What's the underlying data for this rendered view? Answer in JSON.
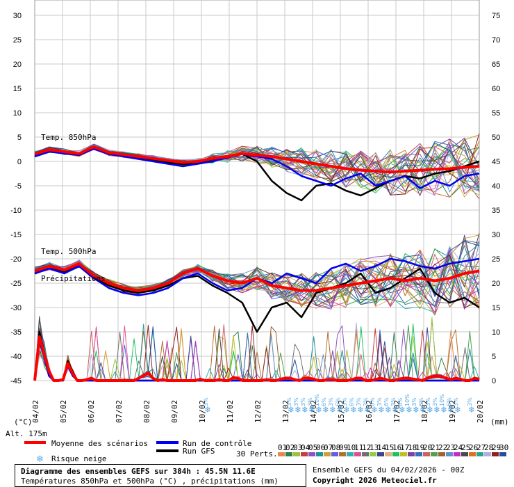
{
  "chart_data": {
    "type": "line",
    "left_axis": {
      "unit": "(°C)",
      "ticks": [
        30,
        25,
        20,
        15,
        10,
        5,
        0,
        -5,
        -10,
        -15,
        -20,
        -25,
        -30,
        -35,
        -40,
        -45
      ],
      "range": [
        -45,
        30
      ]
    },
    "right_axis": {
      "unit": "(mm)",
      "ticks": [
        75,
        70,
        65,
        60,
        55,
        50,
        45,
        40,
        35,
        30,
        25,
        20,
        15,
        10,
        5,
        0
      ],
      "range": [
        0,
        75
      ]
    },
    "x_labels": [
      "04/02",
      "05/02",
      "06/02",
      "07/02",
      "08/02",
      "09/02",
      "10/02",
      "11/02",
      "12/02",
      "13/02",
      "14/02",
      "15/02",
      "16/02",
      "17/02",
      "18/02",
      "19/02",
      "20/02"
    ],
    "panel_labels": {
      "t850": "Temp. 850hPa",
      "t500": "Temp. 500hPa",
      "precip": "Précipitations"
    },
    "altitude": "Alt. 175m",
    "legend": {
      "mean": "Moyenne des scénarios",
      "control": "Run de contrôle",
      "gfs": "Run GFS",
      "snow": "Risque neige",
      "perts": "30 Perts."
    },
    "member_labels": [
      "01",
      "02",
      "03",
      "04",
      "05",
      "06",
      "07",
      "08",
      "09",
      "10",
      "11",
      "12",
      "13",
      "14",
      "15",
      "16",
      "17",
      "18",
      "19",
      "20",
      "21",
      "22",
      "23",
      "24",
      "25",
      "26",
      "27",
      "28",
      "29",
      "30"
    ],
    "member_colors": [
      "#e8884b",
      "#2f7f4f",
      "#a0c040",
      "#c04040",
      "#9050c0",
      "#2090a0",
      "#d0a030",
      "#6060e0",
      "#b07030",
      "#30b0b0",
      "#e05090",
      "#707070",
      "#90d040",
      "#404090",
      "#e0b080",
      "#20c060",
      "#c0c020",
      "#8040a0",
      "#3070c0",
      "#d06060",
      "#50a050",
      "#a06030",
      "#6090d0",
      "#c030c0",
      "#4a4a4a",
      "#e07020",
      "#30a090",
      "#b0b0e0",
      "#902020",
      "#2050a0"
    ],
    "series_colors": {
      "mean": "#ff0000",
      "control": "#0000ee",
      "gfs": "#000000"
    },
    "t850": {
      "mean": [
        1.5,
        2.4,
        2.0,
        1.6,
        3.0,
        1.8,
        1.4,
        1.0,
        0.6,
        0.2,
        -0.2,
        0.0,
        0.6,
        1.0,
        1.6,
        1.3,
        1.0,
        0.5,
        0.0,
        -0.5,
        -1.0,
        -1.5,
        -1.8,
        -2.0,
        -2.2,
        -2.0,
        -1.8,
        -1.6,
        -1.5,
        -1.2,
        -1.0
      ],
      "control": [
        1.0,
        2.0,
        1.6,
        1.3,
        2.6,
        1.5,
        1.0,
        0.5,
        0.0,
        -0.5,
        -1.0,
        -0.5,
        0.0,
        0.8,
        1.5,
        1.0,
        0.5,
        -1.0,
        -3.0,
        -4.0,
        -5.0,
        -3.5,
        -2.5,
        -5.0,
        -4.0,
        -3.0,
        -5.5,
        -4.0,
        -5.0,
        -3.0,
        -2.5
      ],
      "gfs": [
        1.2,
        2.2,
        1.8,
        1.5,
        2.8,
        1.6,
        1.2,
        0.8,
        0.3,
        -0.2,
        -0.6,
        -0.3,
        0.4,
        1.0,
        1.5,
        0.0,
        -4.0,
        -6.5,
        -8.0,
        -5.0,
        -4.5,
        -6.0,
        -7.0,
        -5.5,
        -4.0,
        -3.0,
        -3.5,
        -2.5,
        -2.0,
        -1.0,
        0.0
      ]
    },
    "t500": {
      "mean": [
        -22.5,
        -21.5,
        -22.3,
        -21.0,
        -23.5,
        -25.0,
        -26.0,
        -26.5,
        -26.0,
        -25.0,
        -23.0,
        -22.0,
        -23.5,
        -24.5,
        -25.0,
        -24.0,
        -25.5,
        -26.0,
        -26.5,
        -26.5,
        -26.0,
        -25.5,
        -25.0,
        -24.5,
        -24.0,
        -24.5,
        -24.0,
        -24.5,
        -24.0,
        -23.0,
        -22.5
      ],
      "control": [
        -23.0,
        -22.0,
        -23.0,
        -21.5,
        -24.0,
        -26.0,
        -27.0,
        -27.5,
        -27.0,
        -26.0,
        -24.0,
        -23.0,
        -25.0,
        -26.5,
        -26.0,
        -24.0,
        -25.0,
        -23.0,
        -24.0,
        -25.0,
        -22.0,
        -21.0,
        -22.5,
        -21.5,
        -20.0,
        -20.5,
        -21.5,
        -22.0,
        -21.0,
        -20.5,
        -20.0
      ],
      "gfs": [
        -23.0,
        -21.8,
        -22.8,
        -21.3,
        -23.8,
        -25.5,
        -26.5,
        -27.0,
        -26.5,
        -25.5,
        -24.0,
        -23.5,
        -25.5,
        -27.0,
        -29.0,
        -35.0,
        -30.0,
        -29.0,
        -32.0,
        -27.0,
        -26.0,
        -25.0,
        -23.0,
        -27.0,
        -26.0,
        -24.0,
        -22.0,
        -27.0,
        -29.0,
        -28.0,
        -30.0
      ]
    },
    "precip": {
      "mean": [
        0.0,
        9.0,
        5.5,
        2.0,
        0.0,
        0.0,
        0.2,
        3.5,
        1.5,
        0.0,
        0.0,
        0.2,
        0.5,
        0.0,
        0.0,
        0.0,
        0.0,
        0.0,
        0.0,
        0.0,
        0.0,
        0.0,
        0.5,
        1.0,
        1.5,
        0.5,
        0.0,
        0.2,
        0.0,
        0.0,
        0.0,
        0.0,
        0.0,
        0.0,
        0.0,
        0.3,
        0.0,
        0.0,
        0.0,
        0.2,
        0.0,
        0.0,
        0.6,
        0.5,
        0.0,
        0.0,
        0.0,
        0.0,
        0.0,
        0.2,
        0.0,
        0.0,
        0.3,
        0.5,
        0.5,
        0.2,
        0.0,
        0.5,
        0.5,
        0.3,
        0.0,
        0.0,
        0.2,
        0.2,
        0.0,
        0.0,
        0.0,
        0.2,
        0.5,
        0.5,
        0.0,
        0.0,
        0.2,
        0.5,
        0.3,
        0.0,
        0.0,
        0.3,
        0.5,
        0.5,
        0.3,
        0.2,
        0.0,
        0.5,
        0.8,
        1.0,
        0.8,
        0.5,
        0.2,
        0.5,
        0.3,
        0.0,
        0.0,
        0.5,
        0.3
      ],
      "control": [
        0.0,
        8.0,
        5.0,
        1.0,
        0.0,
        0.0,
        0.0,
        3.0,
        1.0,
        0.0,
        0.0,
        0.0,
        0.0,
        0.0,
        0.0,
        0.0,
        0.0,
        0.0,
        0.0,
        0.0,
        0.0,
        0.0,
        0.0,
        0.0,
        0.0,
        0.0,
        0.0,
        0.0,
        0.0,
        0.0,
        0.0,
        0.0,
        0.0,
        0.0,
        0.0,
        0.0,
        0.0,
        0.0,
        0.0,
        0.0,
        0.0,
        0.0,
        0.0,
        0.0,
        0.0,
        0.0,
        0.0,
        0.0,
        0.0,
        0.0,
        0.0,
        0.0,
        0.0,
        0.0,
        0.0,
        0.0,
        0.0,
        0.0,
        0.0,
        0.0,
        0.0,
        0.0,
        0.0,
        0.0,
        0.0,
        0.0,
        0.0,
        0.0,
        0.0,
        0.0,
        0.0,
        0.0,
        0.0,
        0.0,
        0.0,
        0.0,
        0.0,
        0.0,
        0.0,
        0.0,
        0.0,
        0.0,
        0.0,
        0.0,
        0.0,
        0.0,
        0.0,
        0.0,
        0.0,
        0.0,
        0.0,
        0.0,
        0.0,
        0.0,
        0.0
      ],
      "gfs": [
        0.0,
        10.0,
        6.0,
        1.0,
        0.0,
        0.0,
        0.0,
        4.0,
        2.0,
        0.0,
        0.0,
        0.0,
        0.0,
        0.0,
        0.0,
        0.0,
        0.0,
        0.0,
        0.0,
        0.0,
        0.0,
        0.0,
        0.0,
        0.0,
        0.0,
        0.0,
        0.0,
        0.0,
        0.0,
        0.0,
        0.0,
        0.0,
        0.0,
        0.0,
        0.0,
        0.0,
        0.0,
        0.0,
        0.0,
        0.0,
        0.0,
        0.0,
        0.0,
        0.0,
        0.0,
        0.0,
        0.0,
        0.0,
        0.0,
        0.0,
        0.0,
        0.0,
        0.0,
        0.0,
        0.0,
        0.0,
        0.0,
        0.0,
        0.0,
        0.0,
        0.0,
        0.0,
        0.0,
        0.0,
        0.0,
        0.0,
        0.0,
        0.0,
        0.0,
        0.0,
        0.0,
        0.0,
        0.0,
        0.0,
        0.0,
        0.0,
        0.0,
        0.0,
        0.0,
        0.0,
        0.0,
        0.0,
        0.0,
        0.0,
        0.0,
        0.0,
        0.0,
        0.0,
        0.0,
        0.0,
        0.0,
        0.0,
        0.0,
        0.0,
        0.0
      ]
    },
    "snow_risk": [
      {
        "date_index": 6.0,
        "percent": "3%"
      },
      {
        "date_index": 9.0,
        "percent": "3%"
      },
      {
        "date_index": 9.25,
        "percent": "3%"
      },
      {
        "date_index": 9.5,
        "percent": "3%"
      },
      {
        "date_index": 9.75,
        "percent": "3%"
      },
      {
        "date_index": 10.0,
        "percent": "10%"
      },
      {
        "date_index": 10.25,
        "percent": "6%"
      },
      {
        "date_index": 10.5,
        "percent": "3%"
      },
      {
        "date_index": 10.75,
        "percent": "6%"
      },
      {
        "date_index": 11.0,
        "percent": "3%"
      },
      {
        "date_index": 11.25,
        "percent": "6%"
      },
      {
        "date_index": 11.5,
        "percent": "3%"
      },
      {
        "date_index": 11.75,
        "percent": "3%"
      },
      {
        "date_index": 12.0,
        "percent": "6%"
      },
      {
        "date_index": 12.25,
        "percent": "3%"
      },
      {
        "date_index": 12.5,
        "percent": "6%"
      },
      {
        "date_index": 12.75,
        "percent": "3%"
      },
      {
        "date_index": 13.0,
        "percent": "6%"
      },
      {
        "date_index": 13.25,
        "percent": "10%"
      },
      {
        "date_index": 13.5,
        "percent": "3%"
      },
      {
        "date_index": 13.75,
        "percent": "6%"
      },
      {
        "date_index": 14.0,
        "percent": "3%"
      },
      {
        "date_index": 14.25,
        "percent": "3%"
      },
      {
        "date_index": 14.5,
        "percent": "10%"
      },
      {
        "date_index": 14.75,
        "percent": "6%"
      },
      {
        "date_index": 15.0,
        "percent": "3%"
      },
      {
        "date_index": 15.5,
        "percent": "3%"
      }
    ]
  },
  "footer": {
    "title": "Diagramme des ensembles GEFS sur 384h : 45.5N 11.6E",
    "subtitle": "Températures 850hPa et 500hPa (°C) , précipitations (mm)",
    "run": "Ensemble GEFS du 04/02/2026 - 00Z",
    "copyright": "Copyright 2026 Meteociel.fr"
  }
}
